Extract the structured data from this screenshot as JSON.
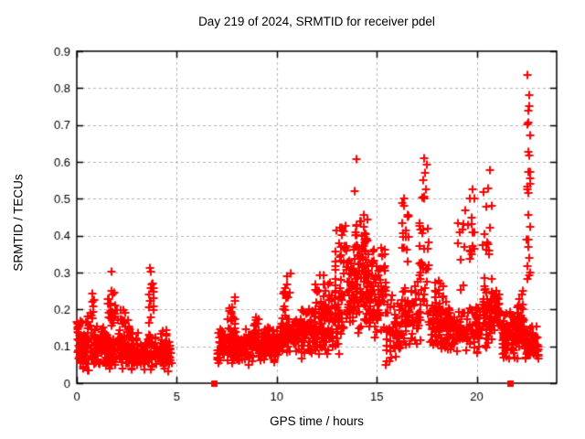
{
  "chart_data": {
    "type": "scatter",
    "title": "Day 219 of 2024, SRMTID for receiver pdel",
    "xlabel": "GPS time / hours",
    "ylabel": "SRMTID / TECUs",
    "xlim": [
      0,
      24
    ],
    "ylim": [
      0,
      0.9
    ],
    "xticks": {
      "values": [
        0,
        5,
        10,
        15,
        20
      ],
      "labels": [
        "0",
        "5",
        "10",
        "15",
        "20"
      ]
    },
    "yticks": {
      "values": [
        0,
        0.1,
        0.2,
        0.3,
        0.4,
        0.5,
        0.6,
        0.7,
        0.8,
        0.9
      ],
      "labels": [
        "0",
        "0.1",
        "0.2",
        "0.3",
        "0.4",
        "0.5",
        "0.6",
        "0.7",
        "0.8",
        "0.9"
      ]
    },
    "grid": {
      "show": true,
      "color": "#b3b3b3",
      "style": "dashed"
    },
    "colors": {
      "series": "#ff0000",
      "axis": "#000000",
      "background": "#ffffff"
    },
    "marker": {
      "shape": "plus",
      "color": "#ff0000",
      "size": 9,
      "stroke": 2
    },
    "data_gap_hours": [
      4.75,
      7.0
    ],
    "event_markers": {
      "shape": "square",
      "color": "#ff0000",
      "size": 7,
      "points": [
        [
          6.9,
          0
        ],
        [
          21.7,
          0
        ]
      ]
    },
    "bands_key": "x_start_hour, x_end_hour, y_min_TECUs, y_max_TECUs, point_count",
    "bands": [
      [
        0.0,
        4.75,
        0.03,
        0.14,
        380
      ],
      [
        0.0,
        0.6,
        0.08,
        0.2,
        30
      ],
      [
        0.65,
        0.95,
        0.12,
        0.25,
        12
      ],
      [
        1.0,
        1.5,
        0.05,
        0.17,
        25
      ],
      [
        1.55,
        2.0,
        0.13,
        0.3,
        22
      ],
      [
        2.0,
        2.45,
        0.11,
        0.22,
        16
      ],
      [
        2.5,
        2.85,
        0.09,
        0.19,
        10
      ],
      [
        3.55,
        3.85,
        0.14,
        0.315,
        16
      ],
      [
        4.2,
        4.55,
        0.08,
        0.17,
        8
      ],
      [
        7.0,
        8.0,
        0.05,
        0.16,
        85
      ],
      [
        7.55,
        7.95,
        0.13,
        0.25,
        14
      ],
      [
        8.0,
        9.3,
        0.04,
        0.15,
        105
      ],
      [
        8.85,
        9.1,
        0.12,
        0.21,
        10
      ],
      [
        9.3,
        10.15,
        0.05,
        0.16,
        75
      ],
      [
        10.3,
        10.7,
        0.14,
        0.32,
        16
      ],
      [
        10.15,
        11.2,
        0.07,
        0.19,
        100
      ],
      [
        11.2,
        12.3,
        0.06,
        0.22,
        110
      ],
      [
        11.9,
        12.25,
        0.17,
        0.3,
        12
      ],
      [
        12.3,
        13.35,
        0.06,
        0.31,
        105
      ],
      [
        12.85,
        13.5,
        0.24,
        0.46,
        26
      ],
      [
        13.5,
        14.6,
        0.12,
        0.4,
        120
      ],
      [
        13.9,
        14.55,
        0.28,
        0.49,
        30
      ],
      [
        14.6,
        15.45,
        0.12,
        0.38,
        80
      ],
      [
        15.45,
        16.2,
        0.04,
        0.25,
        65
      ],
      [
        16.25,
        16.6,
        0.28,
        0.565,
        16
      ],
      [
        16.2,
        17.2,
        0.1,
        0.28,
        75
      ],
      [
        17.1,
        17.6,
        0.15,
        0.48,
        30
      ],
      [
        17.2,
        17.55,
        0.45,
        0.615,
        8
      ],
      [
        17.55,
        18.65,
        0.07,
        0.24,
        95
      ],
      [
        17.9,
        18.4,
        0.18,
        0.31,
        12
      ],
      [
        18.65,
        19.35,
        0.07,
        0.2,
        55
      ],
      [
        19.0,
        19.35,
        0.22,
        0.46,
        8
      ],
      [
        19.35,
        19.9,
        0.28,
        0.575,
        16
      ],
      [
        19.35,
        20.25,
        0.08,
        0.22,
        65
      ],
      [
        20.3,
        20.75,
        0.24,
        0.6,
        16
      ],
      [
        20.3,
        21.3,
        0.09,
        0.28,
        85
      ],
      [
        21.3,
        22.45,
        0.05,
        0.21,
        115
      ],
      [
        22.0,
        22.35,
        0.12,
        0.26,
        20
      ],
      [
        22.5,
        22.68,
        0.22,
        0.85,
        26
      ],
      [
        22.45,
        23.1,
        0.05,
        0.17,
        60
      ]
    ],
    "outlier_points": [
      [
        13.97,
        0.608
      ],
      [
        13.9,
        0.52
      ],
      [
        1.72,
        0.302
      ],
      [
        3.67,
        0.313
      ]
    ]
  }
}
